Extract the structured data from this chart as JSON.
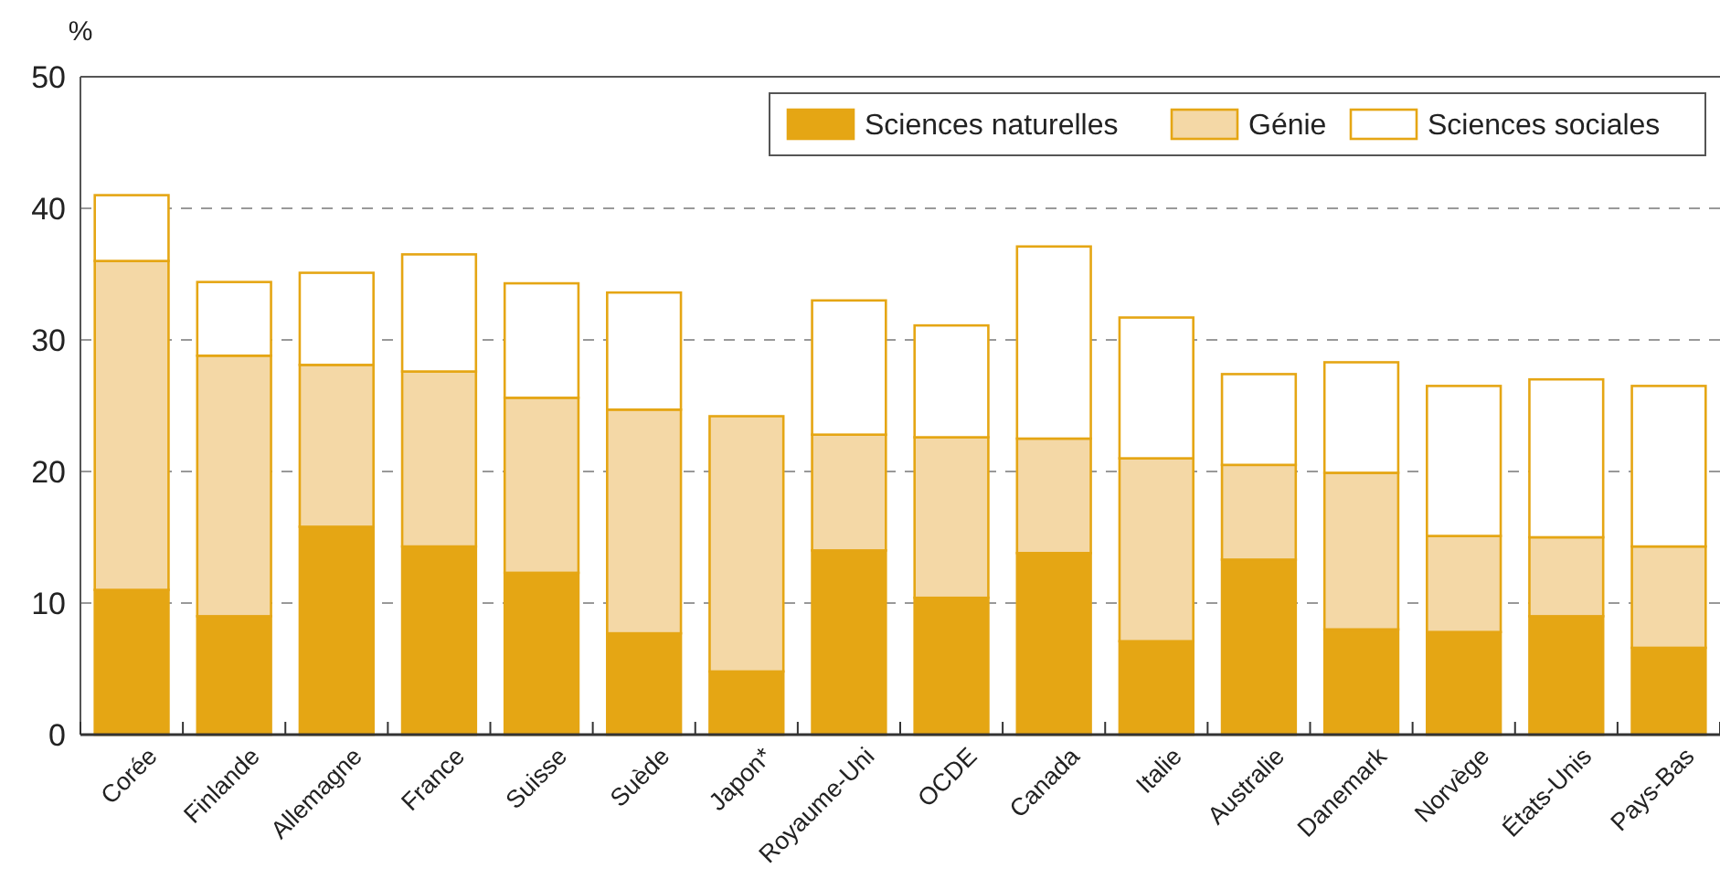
{
  "chart_data": {
    "type": "bar",
    "stacked": true,
    "ylabel": "%",
    "categories": [
      "Corée",
      "Finlande",
      "Allemagne",
      "France",
      "Suisse",
      "Suède",
      "Japon*",
      "Royaume-Uni",
      "OCDE",
      "Canada",
      "Italie",
      "Australie",
      "Danemark",
      "Norvège",
      "États-Unis",
      "Pays-Bas"
    ],
    "series": [
      {
        "name": "Sciences naturelles",
        "color": "#e5a614",
        "values": [
          11,
          9,
          15.8,
          14.3,
          12.3,
          7.7,
          4.8,
          14,
          10.4,
          13.8,
          7.1,
          13.3,
          8,
          7.8,
          9,
          6.6
        ]
      },
      {
        "name": "Génie",
        "color": "#f4d8a6",
        "values": [
          25,
          19.8,
          12.3,
          13.3,
          13.3,
          17,
          19.4,
          8.8,
          12.2,
          8.7,
          13.9,
          7.2,
          11.9,
          7.3,
          6,
          7.7
        ]
      },
      {
        "name": "Sciences sociales",
        "color": "#ffffff",
        "values": [
          5,
          5.6,
          7,
          8.9,
          8.7,
          8.9,
          0,
          10.2,
          8.5,
          14.6,
          10.7,
          6.9,
          8.4,
          11.4,
          12,
          12.2
        ]
      }
    ],
    "ylim": [
      0,
      50
    ],
    "yticks": [
      0,
      10,
      20,
      30,
      40,
      50
    ],
    "grid": "y",
    "legend": "top right"
  }
}
